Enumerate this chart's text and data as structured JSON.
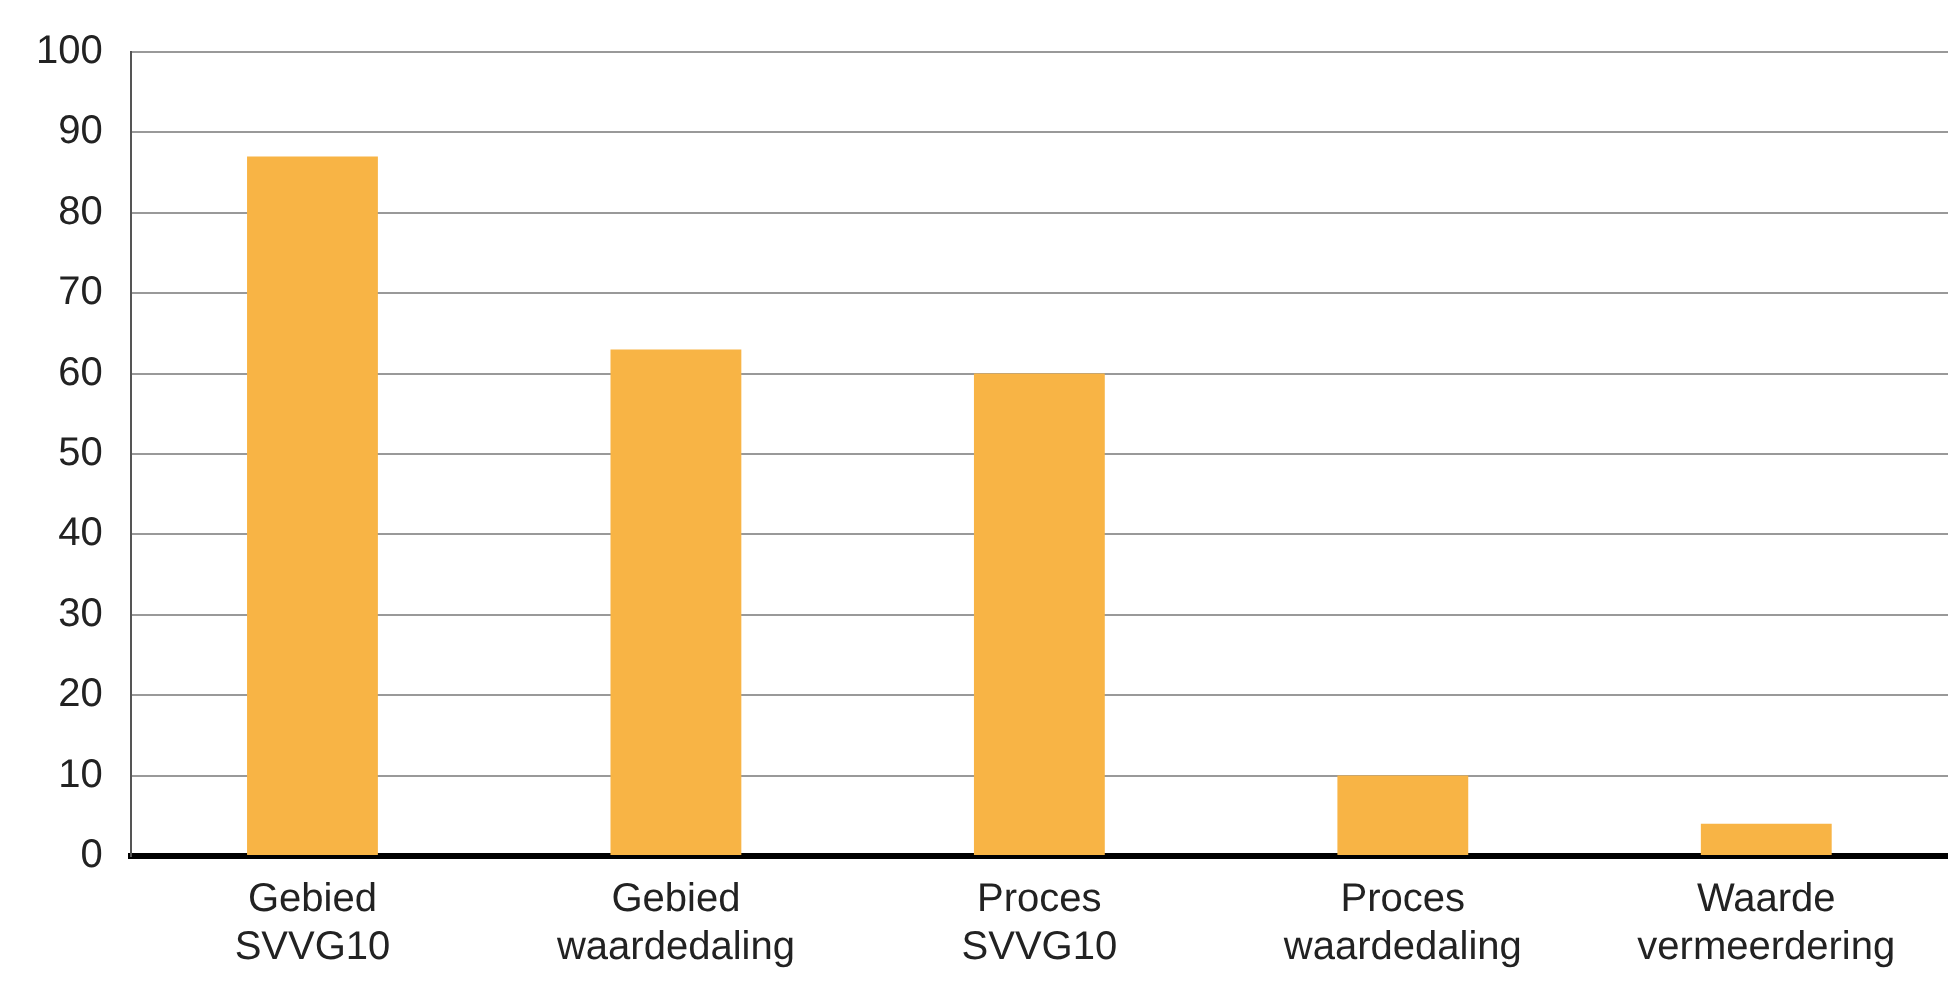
{
  "chart_data": {
    "type": "bar",
    "categories": [
      "Gebied SVVG10",
      "Gebied waardedaling",
      "Proces SVVG10",
      "Proces waardedaling",
      "Waarde vermeerdering"
    ],
    "values": [
      87,
      63,
      60,
      10,
      4
    ],
    "color": "#f8b445",
    "ylim": [
      0,
      100
    ],
    "yticks": [
      0,
      10,
      20,
      30,
      40,
      50,
      60,
      70,
      80,
      90,
      100
    ],
    "grid": "y",
    "legend": false
  }
}
